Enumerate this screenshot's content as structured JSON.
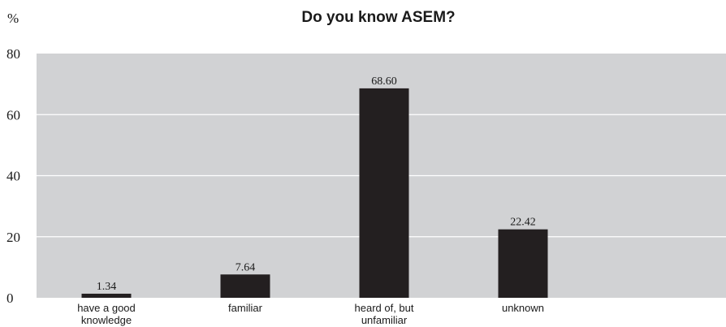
{
  "chart_data": {
    "type": "bar",
    "title": "Do you know ASEM?",
    "ylabel": "%",
    "xlabel": "",
    "categories": [
      [
        "have a good",
        "knowledge"
      ],
      [
        "familiar"
      ],
      [
        "heard of, but",
        "unfamiliar"
      ],
      [
        "unknown"
      ]
    ],
    "values": [
      1.34,
      7.64,
      68.6,
      22.42
    ],
    "value_labels": [
      "1.34",
      "7.64",
      "68.60",
      "22.42"
    ],
    "ylim": [
      0,
      80
    ],
    "yticks": [
      0,
      20,
      40,
      60,
      80
    ],
    "grid": true,
    "colors": {
      "bar": "#231f20",
      "plot_background": "#d1d2d4",
      "grid": "#ffffff",
      "text": "#1a1a1a"
    }
  }
}
